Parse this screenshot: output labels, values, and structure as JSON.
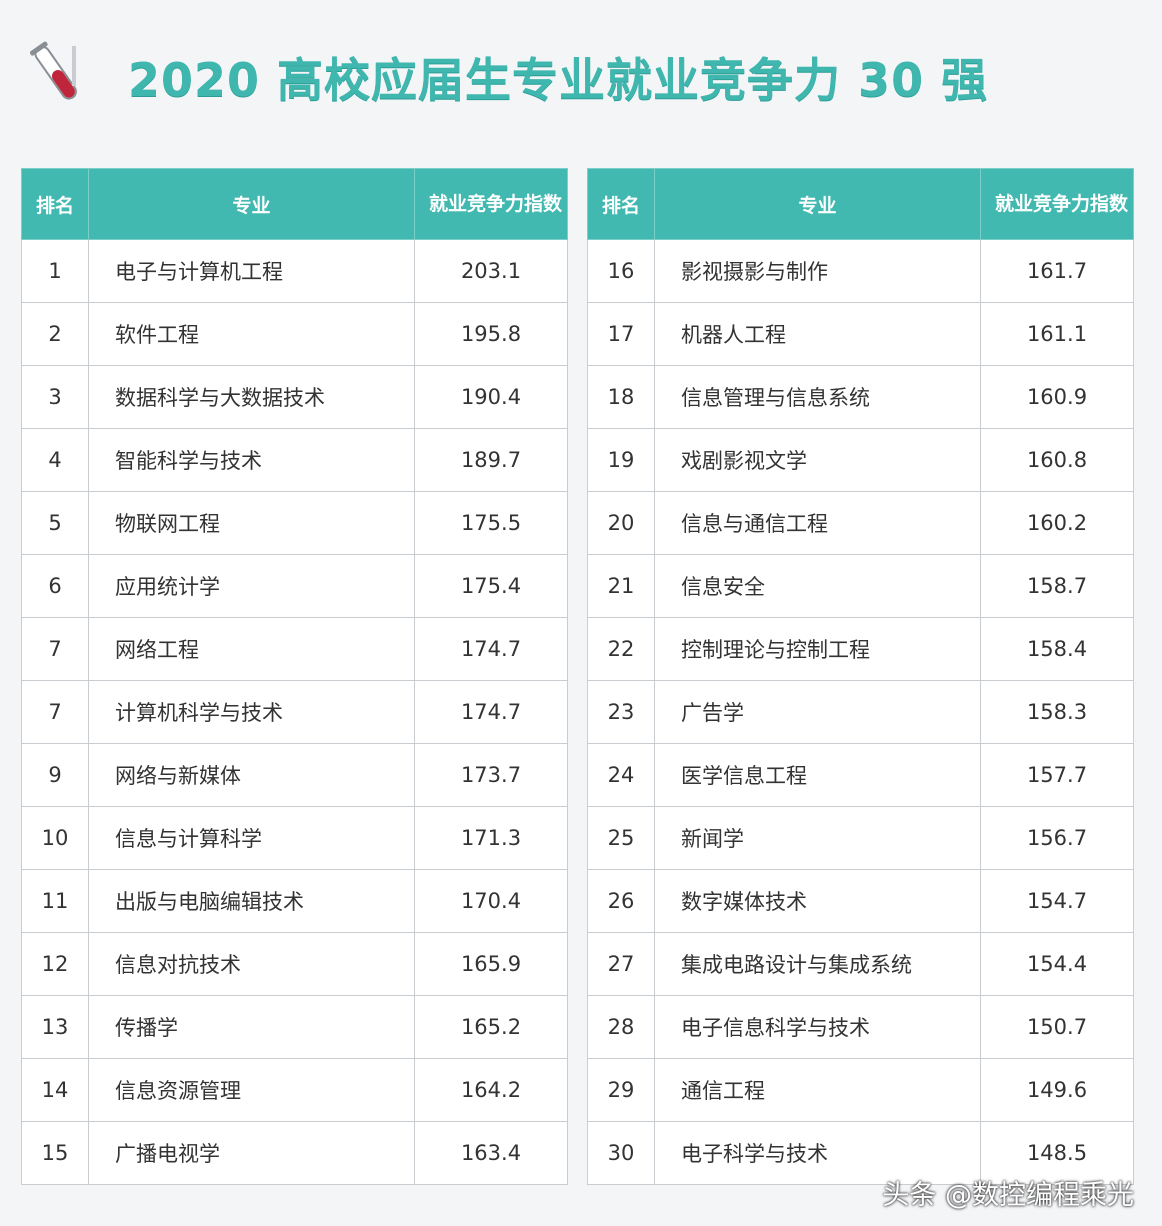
{
  "title": "2020 高校应届生专业就业竞争力 30 强",
  "title_icon": "test-tube-icon",
  "accent_color": "#41b9b0",
  "headers": {
    "rank": "排名",
    "major": "专业",
    "score": "就业竞争力指数"
  },
  "left_rows": [
    {
      "rank": "1",
      "major": "电子与计算机工程",
      "score": "203.1"
    },
    {
      "rank": "2",
      "major": "软件工程",
      "score": "195.8"
    },
    {
      "rank": "3",
      "major": "数据科学与大数据技术",
      "score": "190.4"
    },
    {
      "rank": "4",
      "major": "智能科学与技术",
      "score": "189.7"
    },
    {
      "rank": "5",
      "major": "物联网工程",
      "score": "175.5"
    },
    {
      "rank": "6",
      "major": "应用统计学",
      "score": "175.4"
    },
    {
      "rank": "7",
      "major": "网络工程",
      "score": "174.7"
    },
    {
      "rank": "7",
      "major": "计算机科学与技术",
      "score": "174.7"
    },
    {
      "rank": "9",
      "major": "网络与新媒体",
      "score": "173.7"
    },
    {
      "rank": "10",
      "major": "信息与计算科学",
      "score": "171.3"
    },
    {
      "rank": "11",
      "major": "出版与电脑编辑技术",
      "score": "170.4"
    },
    {
      "rank": "12",
      "major": "信息对抗技术",
      "score": "165.9"
    },
    {
      "rank": "13",
      "major": "传播学",
      "score": "165.2"
    },
    {
      "rank": "14",
      "major": "信息资源管理",
      "score": "164.2"
    },
    {
      "rank": "15",
      "major": "广播电视学",
      "score": "163.4"
    }
  ],
  "right_rows": [
    {
      "rank": "16",
      "major": "影视摄影与制作",
      "score": "161.7"
    },
    {
      "rank": "17",
      "major": "机器人工程",
      "score": "161.1"
    },
    {
      "rank": "18",
      "major": "信息管理与信息系统",
      "score": "160.9"
    },
    {
      "rank": "19",
      "major": "戏剧影视文学",
      "score": "160.8"
    },
    {
      "rank": "20",
      "major": "信息与通信工程",
      "score": "160.2"
    },
    {
      "rank": "21",
      "major": "信息安全",
      "score": "158.7"
    },
    {
      "rank": "22",
      "major": "控制理论与控制工程",
      "score": "158.4"
    },
    {
      "rank": "23",
      "major": "广告学",
      "score": "158.3"
    },
    {
      "rank": "24",
      "major": "医学信息工程",
      "score": "157.7"
    },
    {
      "rank": "25",
      "major": "新闻学",
      "score": "156.7"
    },
    {
      "rank": "26",
      "major": "数字媒体技术",
      "score": "154.7"
    },
    {
      "rank": "27",
      "major": "集成电路设计与集成系统",
      "score": "154.4"
    },
    {
      "rank": "28",
      "major": "电子信息科学与技术",
      "score": "150.7"
    },
    {
      "rank": "29",
      "major": "通信工程",
      "score": "149.6"
    },
    {
      "rank": "30",
      "major": "电子科学与技术",
      "score": "148.5"
    }
  ],
  "watermark": "头条 @数控编程乘光"
}
